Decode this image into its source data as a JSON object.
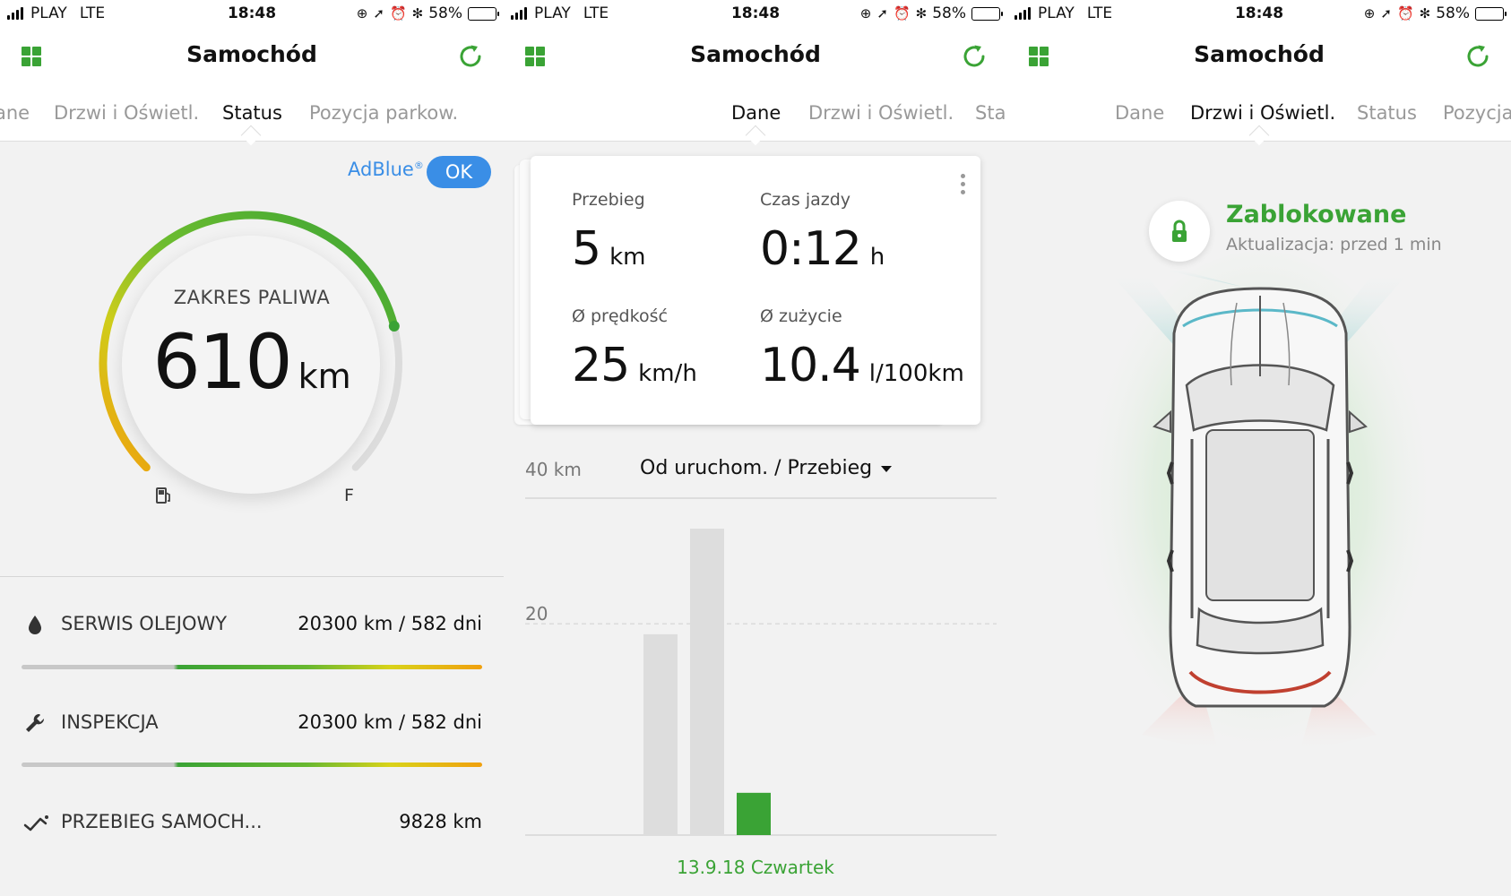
{
  "status_bar": {
    "carrier": "PLAY",
    "network": "LTE",
    "time": "18:48",
    "battery": "58%",
    "battery_level": 0.58
  },
  "app": {
    "title": "Samochód"
  },
  "screens": [
    {
      "tabs": [
        "ane",
        "Drzwi i Oświetl.",
        "Status",
        "Pozycja parkow."
      ],
      "active_tab": "Status"
    },
    {
      "tabs": [
        "Dane",
        "Drzwi i Oświetl.",
        "Sta"
      ],
      "active_tab": "Dane"
    },
    {
      "tabs": [
        "Dane",
        "Drzwi i Oświetl.",
        "Status",
        "Pozycja"
      ],
      "active_tab": "Drzwi i Oświetl."
    }
  ],
  "status": {
    "adblue_label": "AdBlue",
    "adblue_mark": "®",
    "adblue_status": "OK",
    "gauge_label": "ZAKRES PALIWA",
    "range_value": "610",
    "range_unit": "km",
    "fuel_level": 0.78,
    "full_marker": "F",
    "services": [
      {
        "icon": "oil-drop-icon",
        "label": "SERWIS OLEJOWY",
        "value": "20300 km / 582 dni",
        "progress": 0.66
      },
      {
        "icon": "wrench-icon",
        "label": "INSPEKCJA",
        "value": "20300 km / 582 dni",
        "progress": 0.66
      },
      {
        "icon": "odometer-icon",
        "label": "PRZEBIEG SAMOCH...",
        "value": "9828 km"
      }
    ]
  },
  "data": {
    "stats": [
      {
        "label": "Przebieg",
        "value": "5",
        "unit": "km"
      },
      {
        "label": "Czas jazdy",
        "value": "0:12",
        "unit": "h"
      },
      {
        "label": "Ø prędkość",
        "value": "25",
        "unit": "km/h"
      },
      {
        "label": "Ø zużycie",
        "value": "10.4",
        "unit": "l/100km"
      }
    ],
    "chart_range_label": "40 km",
    "chart_dropdown": "Od uruchom. / Przebieg",
    "chart_date": "13.9.18 Czwartek"
  },
  "chart_data": {
    "type": "bar",
    "categories": [
      "",
      "",
      ""
    ],
    "values": [
      19,
      29,
      4
    ],
    "highlighted_index": 2,
    "ylim": [
      0,
      29
    ],
    "ytick_labels": [
      "20"
    ],
    "ytick_values": [
      20
    ],
    "colors": {
      "default": "#dddddd",
      "highlighted": "#3aa335"
    }
  },
  "doors": {
    "lock_status": "Zablokowane",
    "last_update": "Aktualizacja: przed 1 min"
  },
  "colors": {
    "accent_green": "#3aa335",
    "accent_blue": "#3a8ee6"
  }
}
